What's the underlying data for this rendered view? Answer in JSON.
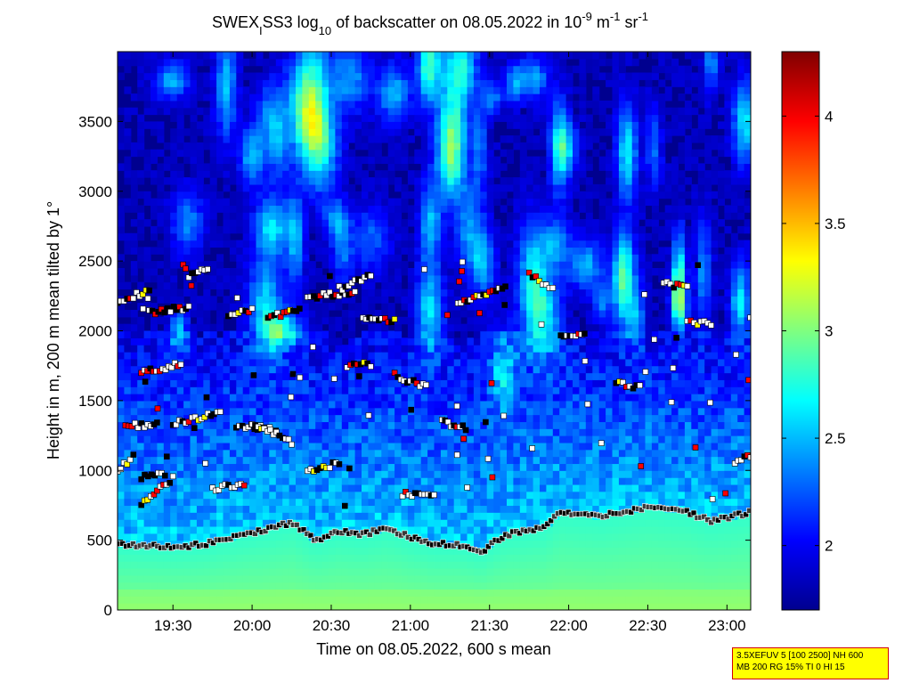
{
  "chart_data": {
    "type": "heatmap",
    "title": {
      "prefix": "SWEX",
      "sub": "I",
      "mid": "SS3 log",
      "log_base": "10",
      "main": " of backscatter on 08.05.2022 in 10",
      "exp1": "-9",
      "unit_m": " m",
      "exp2": "-1",
      "unit_sr": " sr",
      "exp3": "-1"
    },
    "xlabel": "Time on 08.05.2022, 600 s mean",
    "ylabel": "Height in m, 200 m mean tilted by 1°",
    "x_range_hours": [
      19.15,
      23.15
    ],
    "ylim": [
      0,
      4000
    ],
    "x_ticks": [
      {
        "h": 19.5,
        "label": "19:30"
      },
      {
        "h": 20.0,
        "label": "20:00"
      },
      {
        "h": 20.5,
        "label": "20:30"
      },
      {
        "h": 21.0,
        "label": "21:00"
      },
      {
        "h": 21.5,
        "label": "21:30"
      },
      {
        "h": 22.0,
        "label": "22:00"
      },
      {
        "h": 22.5,
        "label": "22:30"
      },
      {
        "h": 23.0,
        "label": "23:00"
      }
    ],
    "y_ticks": [
      0,
      500,
      1000,
      1500,
      2000,
      2500,
      3000,
      3500
    ],
    "colorbar": {
      "range": [
        1.7,
        4.3
      ],
      "ticks": [
        2,
        2.5,
        3,
        3.5,
        4
      ],
      "colormap": "jet"
    },
    "mixing_layer_height_m": [
      [
        19.15,
        470
      ],
      [
        19.5,
        450
      ],
      [
        19.7,
        470
      ],
      [
        19.9,
        530
      ],
      [
        20.1,
        580
      ],
      [
        20.25,
        630
      ],
      [
        20.4,
        500
      ],
      [
        20.55,
        560
      ],
      [
        20.7,
        540
      ],
      [
        20.85,
        590
      ],
      [
        21.0,
        520
      ],
      [
        21.15,
        470
      ],
      [
        21.3,
        470
      ],
      [
        21.45,
        420
      ],
      [
        21.6,
        540
      ],
      [
        21.75,
        570
      ],
      [
        21.85,
        590
      ],
      [
        21.95,
        700
      ],
      [
        22.2,
        670
      ],
      [
        22.5,
        740
      ],
      [
        22.75,
        700
      ],
      [
        22.9,
        640
      ],
      [
        23.15,
        700
      ]
    ],
    "marker_classes": [
      "white",
      "black",
      "red",
      "yellow"
    ]
  },
  "infobox": {
    "line1": "3.5XEFUV 5 [100 2500] NH 600",
    "line2": "MB 200 RG 15% TI 0 HI 15"
  }
}
